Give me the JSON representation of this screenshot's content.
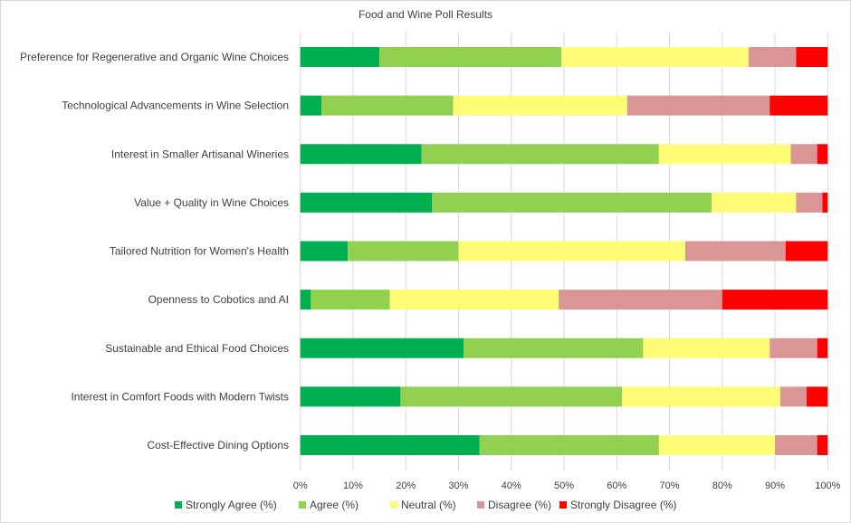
{
  "chart_data": {
    "type": "bar",
    "orientation": "horizontal",
    "stacked": "percent",
    "title": "Food and Wine Poll Results",
    "xlabel": "",
    "ylabel": "",
    "xlim": [
      0,
      100
    ],
    "x_ticks": [
      "0%",
      "10%",
      "20%",
      "30%",
      "40%",
      "50%",
      "60%",
      "70%",
      "80%",
      "90%",
      "100%"
    ],
    "grid": "vertical",
    "legend_position": "bottom",
    "categories": [
      "Preference for Regenerative and Organic Wine Choices",
      "Technological Advancements in Wine Selection",
      "Interest in Smaller Artisanal Wineries",
      "Value +  Quality in Wine Choices",
      "Tailored Nutrition for Women's Health",
      "Openness to Cobotics and AI",
      "Sustainable and Ethical Food Choices",
      "Interest in Comfort Foods with Modern Twists",
      "Cost-Effective Dining Options"
    ],
    "series": [
      {
        "name": "Strongly Agree (%)",
        "color": "#00B050",
        "values": [
          15,
          4,
          23,
          25,
          9,
          2,
          31,
          19,
          34
        ]
      },
      {
        "name": "Agree (%)",
        "color": "#92D050",
        "values": [
          34.5,
          25,
          45,
          53,
          21,
          15,
          34,
          42,
          34
        ]
      },
      {
        "name": "Neutral (%)",
        "color": "#FFFC75",
        "values": [
          35.5,
          33,
          25,
          16,
          43,
          32,
          24,
          30,
          22
        ]
      },
      {
        "name": "Disagree (%)",
        "color": "#DA9694",
        "values": [
          9,
          27,
          5,
          5,
          19,
          31,
          9,
          5,
          8
        ]
      },
      {
        "name": "Strongly Disagree (%)",
        "color": "#FF0000",
        "values": [
          6,
          11,
          2,
          1,
          8,
          20,
          2,
          4,
          2
        ]
      }
    ]
  }
}
